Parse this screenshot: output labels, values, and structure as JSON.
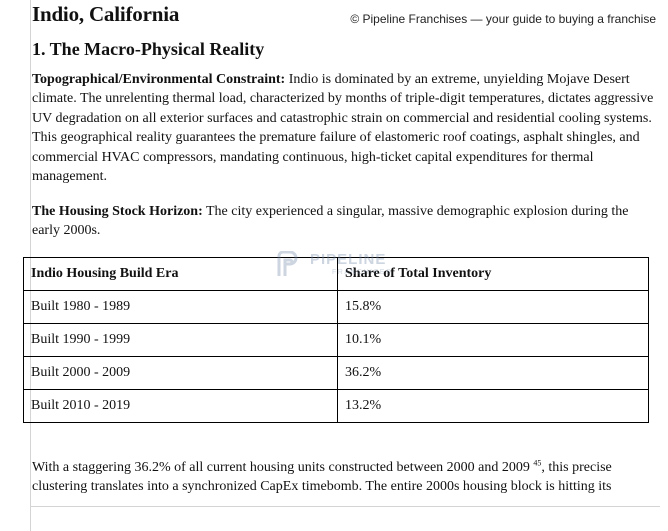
{
  "copyright": "© Pipeline Franchises — your guide to buying a franchise",
  "document": {
    "title": "Indio, California",
    "section_heading": "1. The Macro-Physical Reality",
    "para1": {
      "lead": "Topographical/Environmental Constraint:",
      "text": " Indio is dominated by an extreme, unyielding Mojave Desert climate. The unrelenting thermal load, characterized by months of triple-digit temperatures, dictates aggressive UV degradation on all exterior surfaces and catastrophic strain on commercial and residential cooling systems. This geographical reality guarantees the premature failure of elastomeric roof coatings, asphalt shingles, and commercial HVAC compressors, mandating continuous, high-ticket capital expenditures for thermal management."
    },
    "para2": {
      "lead": "The Housing Stock Horizon:",
      "text": " The city experienced a singular, massive demographic explosion during the early 2000s."
    },
    "para3": {
      "before": "With a staggering 36.2% of all current housing units constructed between 2000 and 2009 ",
      "footnote": "45",
      "after": ", this precise clustering translates into a synchronized CapEx timebomb. The entire 2000s housing block is hitting its"
    }
  },
  "watermark": {
    "text": "PIPELINE",
    "subtext": "FRANCHISES",
    "color": "#6f8aa8"
  },
  "table": {
    "headers": [
      "Indio Housing Build Era",
      "Share of Total Inventory"
    ],
    "rows": [
      [
        "Built 1980 - 1989",
        "15.8%"
      ],
      [
        "Built 1990 - 1999",
        "10.1%"
      ],
      [
        "Built 2000 - 2009",
        "36.2%"
      ],
      [
        "Built 2010 - 2019",
        "13.2%"
      ]
    ]
  }
}
